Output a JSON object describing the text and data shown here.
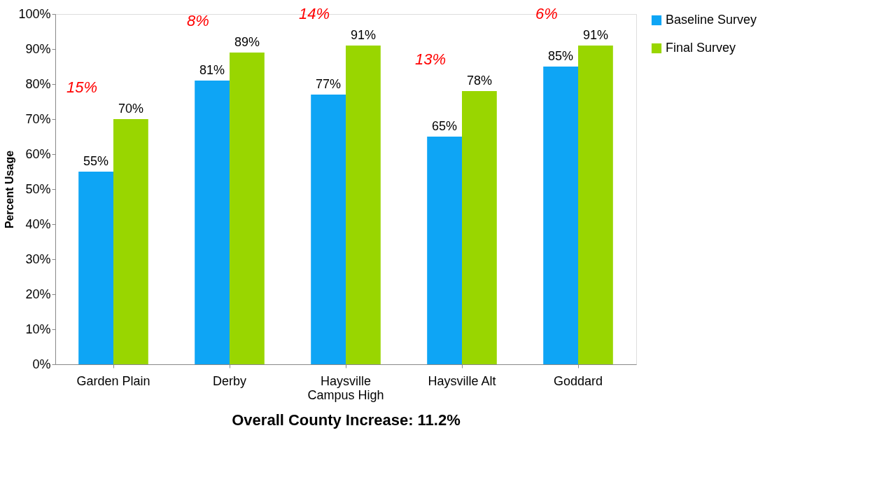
{
  "chart_data": {
    "type": "bar",
    "categories": [
      "Garden Plain",
      "Derby",
      "Haysville\nCampus High",
      "Haysville Alt",
      "Goddard"
    ],
    "series": [
      {
        "name": "Baseline Survey",
        "color": "#0ea5f5",
        "values": [
          55,
          81,
          77,
          65,
          85
        ],
        "value_labels": [
          "55%",
          "81%",
          "77%",
          "65%",
          "85%"
        ]
      },
      {
        "name": "Final Survey",
        "color": "#99d600",
        "values": [
          70,
          89,
          91,
          78,
          91
        ],
        "value_labels": [
          "70%",
          "89%",
          "91%",
          "78%",
          "91%"
        ]
      }
    ],
    "ylabel": "Percent Usage",
    "xlabel": "Overall County Increase:  11.2%",
    "ylim": [
      0,
      100
    ],
    "yticks": [
      {
        "value": 0,
        "label": "0%"
      },
      {
        "value": 10,
        "label": "10%"
      },
      {
        "value": 20,
        "label": "20%"
      },
      {
        "value": 30,
        "label": "30%"
      },
      {
        "value": 40,
        "label": "40%"
      },
      {
        "value": 50,
        "label": "50%"
      },
      {
        "value": 60,
        "label": "60%"
      },
      {
        "value": 70,
        "label": "70%"
      },
      {
        "value": 80,
        "label": "80%"
      },
      {
        "value": 90,
        "label": "90%"
      },
      {
        "value": 100,
        "label": "100%"
      }
    ],
    "annotations": [
      "15%",
      "8%",
      "14%",
      "13%",
      "6%"
    ],
    "grid": false,
    "legend": "right"
  }
}
